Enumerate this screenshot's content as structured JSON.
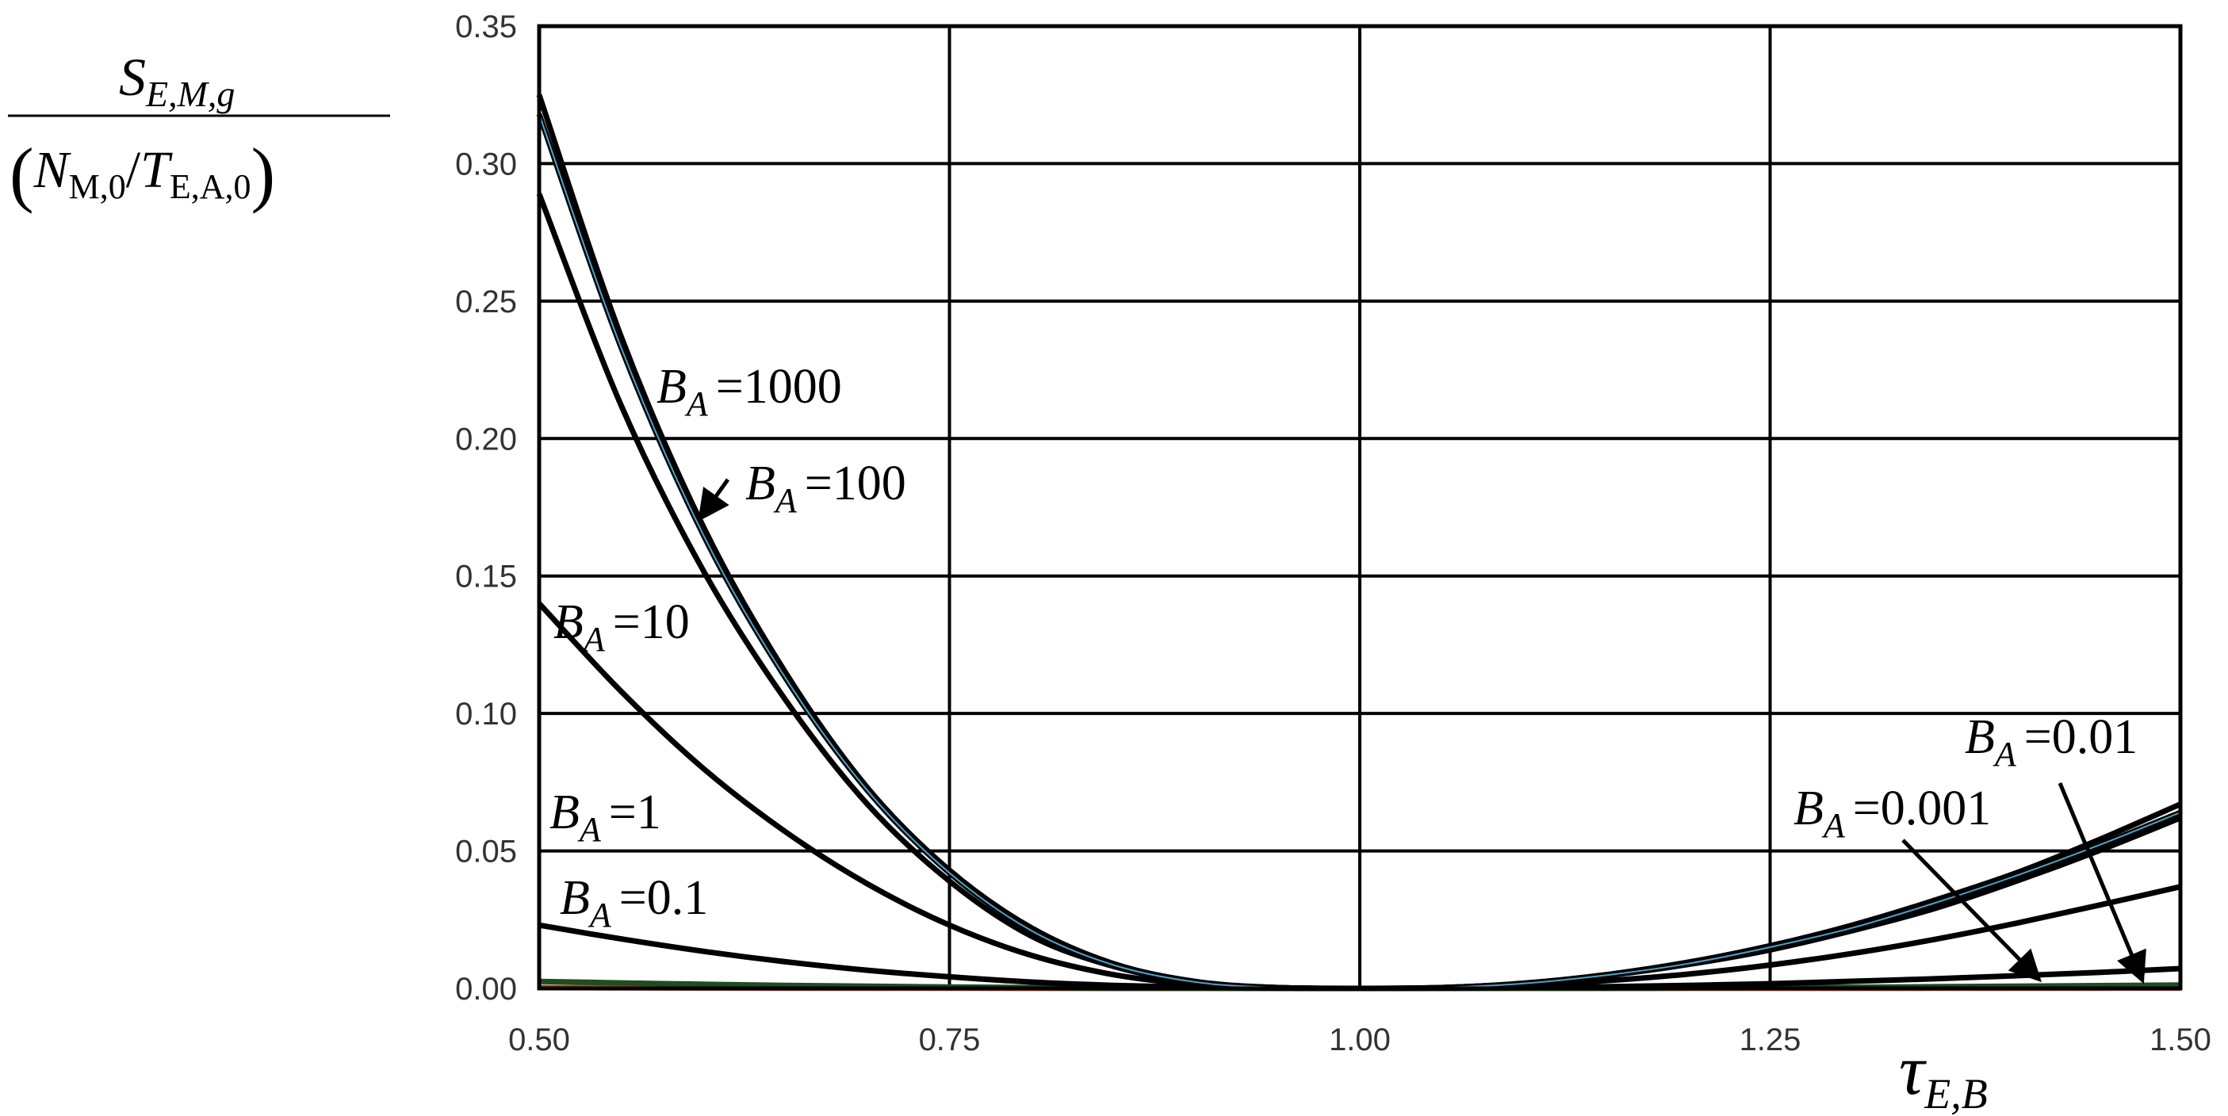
{
  "chart_data": {
    "type": "line",
    "title": "",
    "xlabel": {
      "main": "τ",
      "sub": "E,B"
    },
    "ylabel": {
      "numerator": {
        "main": "S",
        "sub": "E,M,g"
      },
      "denominator": {
        "open": "(",
        "n": "N",
        "n_sub": "M,0",
        "slash": "/",
        "t": "T",
        "t_sub": "E,A,0",
        "close": ")"
      }
    },
    "xlim": [
      0.5,
      1.5
    ],
    "ylim": [
      0,
      0.35
    ],
    "x_ticks": [
      "0.50",
      "0.75",
      "1.00",
      "1.25",
      "1.50"
    ],
    "y_ticks": [
      "0.00",
      "0.05",
      "0.10",
      "0.15",
      "0.20",
      "0.25",
      "0.30",
      "0.35"
    ],
    "grid": true,
    "x": [
      0.5,
      0.55,
      0.6,
      0.65,
      0.7,
      0.75,
      0.8,
      0.85,
      0.9,
      0.95,
      1.0,
      1.05,
      1.1,
      1.15,
      1.2,
      1.25,
      1.3,
      1.35,
      1.4,
      1.45,
      1.5
    ],
    "series": [
      {
        "name": "B_A = 1000",
        "color": "#000000",
        "values": [
          0.325,
          0.237,
          0.168,
          0.115,
          0.073,
          0.043,
          0.022,
          0.009,
          0.0025,
          0.0003,
          0,
          0.0003,
          0.0019,
          0.005,
          0.0095,
          0.0155,
          0.023,
          0.032,
          0.042,
          0.054,
          0.067
        ]
      },
      {
        "name": "B_A = 100",
        "color": "#000000",
        "values": [
          0.318,
          0.233,
          0.165,
          0.113,
          0.072,
          0.042,
          0.021,
          0.0085,
          0.0023,
          0.0003,
          0,
          0.0003,
          0.0018,
          0.0048,
          0.009,
          0.015,
          0.022,
          0.031,
          0.041,
          0.052,
          0.064
        ]
      },
      {
        "name": "B_A = 10",
        "color": "#000000",
        "values": [
          0.289,
          0.212,
          0.152,
          0.105,
          0.067,
          0.039,
          0.019,
          0.008,
          0.002,
          0.0003,
          0,
          0.0003,
          0.0017,
          0.0046,
          0.0087,
          0.014,
          0.021,
          0.029,
          0.039,
          0.05,
          0.062
        ]
      },
      {
        "name": "B_A = 1",
        "color": "#000000",
        "values": [
          0.14,
          0.108,
          0.08,
          0.057,
          0.038,
          0.023,
          0.012,
          0.005,
          0.0014,
          0.0002,
          0,
          0.0002,
          0.0011,
          0.0028,
          0.0052,
          0.0085,
          0.0127,
          0.0178,
          0.0237,
          0.0302,
          0.037
        ]
      },
      {
        "name": "B_A = 0.1",
        "color": "#000000",
        "values": [
          0.023,
          0.018,
          0.0135,
          0.0097,
          0.0066,
          0.0042,
          0.0023,
          0.0011,
          0.0004,
          0.0001,
          0,
          0.0001,
          0.0003,
          0.0006,
          0.0011,
          0.0017,
          0.0026,
          0.0035,
          0.0046,
          0.0058,
          0.0072
        ]
      },
      {
        "name": "B_A = 0.01",
        "color": "#1f4d1f",
        "values": [
          0.0025,
          0.002,
          0.0015,
          0.0011,
          0.0008,
          0.0005,
          0.0003,
          0.0001,
          5e-05,
          0,
          0,
          0,
          5e-05,
          0.0001,
          0.0002,
          0.0003,
          0.0004,
          0.0006,
          0.0008,
          0.001,
          0.0012
        ]
      },
      {
        "name": "B_A = 0.001",
        "color": "#b5451b",
        "values": [
          0.0003,
          0.0002,
          0.00015,
          0.0001,
          8e-05,
          5e-05,
          3e-05,
          1e-05,
          0,
          0,
          0,
          0,
          0,
          1e-05,
          2e-05,
          3e-05,
          4e-05,
          6e-05,
          8e-05,
          0.0001,
          0.00012
        ]
      }
    ],
    "annotations": [
      {
        "main": "B",
        "sub": "A",
        "eq": "=",
        "val": "1000"
      },
      {
        "main": "B",
        "sub": "A",
        "eq": "=",
        "val": "100"
      },
      {
        "main": "B",
        "sub": "A",
        "eq": "=",
        "val": "10"
      },
      {
        "main": "B",
        "sub": "A",
        "eq": "=",
        "val": "1"
      },
      {
        "main": "B",
        "sub": "A",
        "eq": "=",
        "val": "0.1"
      },
      {
        "main": "B",
        "sub": "A",
        "eq": "=",
        "val": "0.01"
      },
      {
        "main": "B",
        "sub": "A",
        "eq": "=",
        "val": "0.001"
      }
    ]
  }
}
